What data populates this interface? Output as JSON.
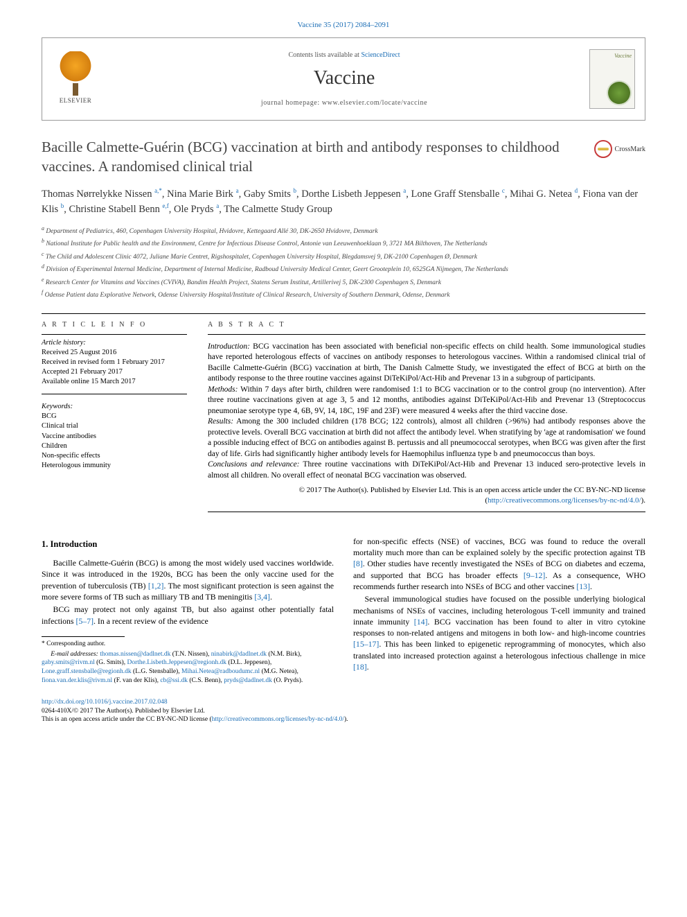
{
  "citation": "Vaccine 35 (2017) 2084–2091",
  "header": {
    "contents_prefix": "Contents lists available at ",
    "contents_link": "ScienceDirect",
    "journal": "Vaccine",
    "homepage_prefix": "journal homepage: ",
    "homepage_url": "www.elsevier.com/locate/vaccine",
    "publisher": "ELSEVIER",
    "cover_title": "Vaccine"
  },
  "crossmark": "CrossMark",
  "title": "Bacille Calmette-Guérin (BCG) vaccination at birth and antibody responses to childhood vaccines. A randomised clinical trial",
  "authors_html": "Thomas Nørrelykke Nissen <sup>a,*</sup>, Nina Marie Birk <sup>a</sup>, Gaby Smits <sup>b</sup>, Dorthe Lisbeth Jeppesen <sup>a</sup>, Lone Graff Stensballe <sup>c</sup>, Mihai G. Netea <sup>d</sup>, Fiona van der Klis <sup>b</sup>, Christine Stabell Benn <sup>e,f</sup>, Ole Pryds <sup>a</sup>, The Calmette Study Group",
  "affiliations": [
    "a Department of Pediatrics, 460, Copenhagen University Hospital, Hvidovre, Kettegaard Allé 30, DK-2650 Hvidovre, Denmark",
    "b National Institute for Public health and the Environment, Centre for Infectious Disease Control, Antonie van Leeuwenhoeklaan 9, 3721 MA Bilthoven, The Netherlands",
    "c The Child and Adolescent Clinic 4072, Juliane Marie Centret, Rigshospitalet, Copenhagen University Hospital, Blegdamsvej 9, DK-2100 Copenhagen Ø, Denmark",
    "d Division of Experimental Internal Medicine, Department of Internal Medicine, Radboud University Medical Center, Geert Grooteplein 10, 6525GA Nijmegen, The Netherlands",
    "e Research Center for Vitamins and Vaccines (CVIVA), Bandim Health Project, Statens Serum Institut, Artillerivej 5, DK-2300 Copenhagen S, Denmark",
    "f Odense Patient data Explorative Network, Odense University Hospital/Institute of Clinical Research, University of Southern Denmark, Odense, Denmark"
  ],
  "info_label": "A R T I C L E   I N F O",
  "abstract_label": "A B S T R A C T",
  "history": {
    "label": "Article history:",
    "lines": [
      "Received 25 August 2016",
      "Received in revised form 1 February 2017",
      "Accepted 21 February 2017",
      "Available online 15 March 2017"
    ]
  },
  "keywords": {
    "label": "Keywords:",
    "items": [
      "BCG",
      "Clinical trial",
      "Vaccine antibodies",
      "Children",
      "Non-specific effects",
      "Heterologous immunity"
    ]
  },
  "abstract": {
    "intro_label": "Introduction:",
    "intro": " BCG vaccination has been associated with beneficial non-specific effects on child health. Some immunological studies have reported heterologous effects of vaccines on antibody responses to heterologous vaccines. Within a randomised clinical trial of Bacille Calmette-Guérin (BCG) vaccination at birth, The Danish Calmette Study, we investigated the effect of BCG at birth on the antibody response to the three routine vaccines against DiTeKiPol/Act-Hib and Prevenar 13 in a subgroup of participants.",
    "methods_label": "Methods:",
    "methods": " Within 7 days after birth, children were randomised 1:1 to BCG vaccination or to the control group (no intervention). After three routine vaccinations given at age 3, 5 and 12 months, antibodies against DiTeKiPol/Act-Hib and Prevenar 13 (Streptococcus pneumoniae serotype type 4, 6B, 9V, 14, 18C, 19F and 23F) were measured 4 weeks after the third vaccine dose.",
    "results_label": "Results:",
    "results": " Among the 300 included children (178 BCG; 122 controls), almost all children (>96%) had antibody responses above the protective levels. Overall BCG vaccination at birth did not affect the antibody level. When stratifying by 'age at randomisation' we found a possible inducing effect of BCG on antibodies against B. pertussis and all pneumococcal serotypes, when BCG was given after the first day of life. Girls had significantly higher antibody levels for Haemophilus influenza type b and pneumococcus than boys.",
    "concl_label": "Conclusions and relevance:",
    "concl": " Three routine vaccinations with DiTeKiPol/Act-Hib and Prevenar 13 induced sero-protective levels in almost all children. No overall effect of neonatal BCG vaccination was observed.",
    "copyright": "© 2017 The Author(s). Published by Elsevier Ltd. This is an open access article under the CC BY-NC-ND license (",
    "license_url": "http://creativecommons.org/licenses/by-nc-nd/4.0/",
    "copyright_suffix": ")."
  },
  "section1_heading": "1. Introduction",
  "body": {
    "p1a": "Bacille Calmette-Guérin (BCG) is among the most widely used vaccines worldwide. Since it was introduced in the 1920s, BCG has been the only vaccine used for the prevention of tuberculosis (TB) ",
    "p1_ref1": "[1,2]",
    "p1b": ". The most significant protection is seen against the more severe forms of TB such as milliary TB and TB meningitis ",
    "p1_ref2": "[3,4]",
    "p1c": ".",
    "p2a": "BCG may protect not only against TB, but also against other potentially fatal infections ",
    "p2_ref1": "[5–7]",
    "p2b": ". In a recent review of the evidence ",
    "p3a": "for non-specific effects (NSE) of vaccines, BCG was found to reduce the overall mortality much more than can be explained solely by the specific protection against TB ",
    "p3_ref1": "[8]",
    "p3b": ". Other studies have recently investigated the NSEs of BCG on diabetes and eczema, and supported that BCG has broader effects ",
    "p3_ref2": "[9–12]",
    "p3c": ". As a consequence, WHO recommends further research into NSEs of BCG and other vaccines ",
    "p3_ref3": "[13]",
    "p3d": ".",
    "p4a": "Several immunological studies have focused on the possible underlying biological mechanisms of NSEs of vaccines, including heterologous T-cell immunity and trained innate immunity ",
    "p4_ref1": "[14]",
    "p4b": ". BCG vaccination has been found to alter in vitro cytokine responses to non-related antigens and mitogens in both low- and high-income countries ",
    "p4_ref2": "[15–17]",
    "p4c": ". This has been linked to epigenetic reprogramming of monocytes, which also translated into increased protection against a heterologous infectious challenge in mice ",
    "p4_ref3": "[18]",
    "p4d": "."
  },
  "footnotes": {
    "corr": "* Corresponding author.",
    "email_label": "E-mail addresses: ",
    "emails": [
      {
        "addr": "thomas.nissen@dadlnet.dk",
        "who": "(T.N. Nissen)"
      },
      {
        "addr": "ninabirk@dadlnet.dk",
        "who": "(N.M. Birk)"
      },
      {
        "addr": "gaby.smits@rivm.nl",
        "who": "(G. Smits)"
      },
      {
        "addr": "Dorthe.Lisbeth.Jeppesen@regionh.dk",
        "who": "(D.L. Jeppesen)"
      },
      {
        "addr": "Lone.graff.stensballe@regionh.dk",
        "who": "(L.G. Stensballe)"
      },
      {
        "addr": "Mihai.Netea@radboudumc.nl",
        "who": "(M.G. Netea)"
      },
      {
        "addr": "fiona.van.der.klis@rivm.nl",
        "who": "(F. van der Klis)"
      },
      {
        "addr": "cb@ssi.dk",
        "who": "(C.S. Benn)"
      },
      {
        "addr": "pryds@dadlnet.dk",
        "who": "(O. Pryds)."
      }
    ]
  },
  "bottom": {
    "doi": "http://dx.doi.org/10.1016/j.vaccine.2017.02.048",
    "issn_line": "0264-410X/© 2017 The Author(s). Published by Elsevier Ltd.",
    "oa_line_prefix": "This is an open access article under the CC BY-NC-ND license (",
    "oa_url": "http://creativecommons.org/licenses/by-nc-nd/4.0/",
    "oa_line_suffix": ")."
  },
  "colors": {
    "link": "#1a6db5",
    "text": "#000000",
    "muted": "#555555"
  }
}
